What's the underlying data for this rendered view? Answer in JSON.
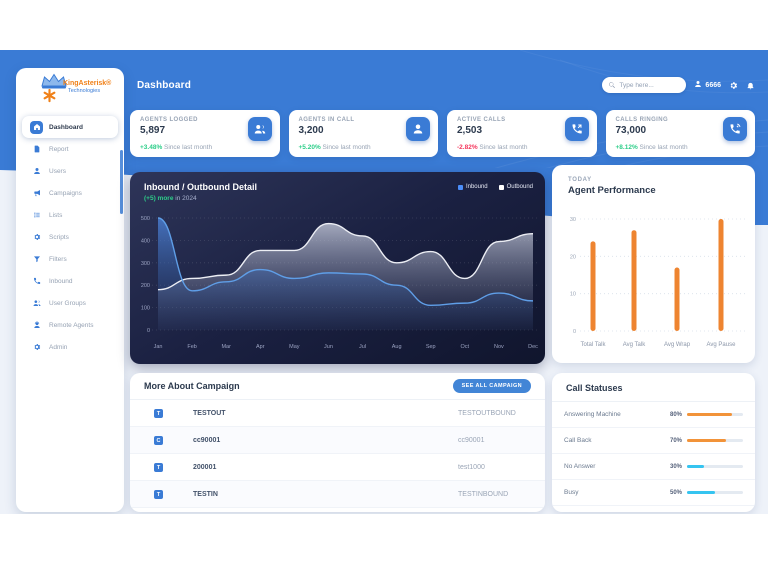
{
  "header": {
    "title": "Dashboard",
    "search_placeholder": "Type here...",
    "user_id": "6666"
  },
  "sidebar": {
    "logo": {
      "name": "KingAsterisk®",
      "tagline": "Technologies"
    },
    "items": [
      {
        "label": "Dashboard",
        "icon": "home-icon",
        "active": true
      },
      {
        "label": "Report",
        "icon": "report-icon",
        "active": false
      },
      {
        "label": "Users",
        "icon": "user-icon",
        "active": false
      },
      {
        "label": "Campaigns",
        "icon": "megaphone-icon",
        "active": false
      },
      {
        "label": "Lists",
        "icon": "list-icon",
        "active": false
      },
      {
        "label": "Scripts",
        "icon": "gear-icon",
        "active": false
      },
      {
        "label": "Filters",
        "icon": "filter-icon",
        "active": false
      },
      {
        "label": "Inbound",
        "icon": "phone-icon",
        "active": false
      },
      {
        "label": "User Groups",
        "icon": "users-icon",
        "active": false
      },
      {
        "label": "Remote Agents",
        "icon": "agent-icon",
        "active": false
      },
      {
        "label": "Admin",
        "icon": "gear-icon",
        "active": false
      }
    ]
  },
  "stats": [
    {
      "label": "AGENTS LOGGED",
      "value": "5,897",
      "delta": "+3.48%",
      "delta_dir": "up",
      "note": "Since last month",
      "icon": "agents-group-icon"
    },
    {
      "label": "AGENTS IN CALL",
      "value": "3,200",
      "delta": "+5.20%",
      "delta_dir": "up",
      "note": "Since last month",
      "icon": "agent-in-call-icon"
    },
    {
      "label": "ACTIVE CALLS",
      "value": "2,503",
      "delta": "-2.82%",
      "delta_dir": "down",
      "note": "Since last month",
      "icon": "phone-outgoing-icon"
    },
    {
      "label": "CALLS RINGING",
      "value": "73,000",
      "delta": "+8.12%",
      "delta_dir": "up",
      "note": "Since last month",
      "icon": "phone-ringing-icon"
    }
  ],
  "chart_data": [
    {
      "id": "inbound-outbound",
      "type": "area",
      "title": "Inbound / Outbound Detail",
      "subtitle_highlight": "(+5) more",
      "subtitle_rest": " in 2024",
      "categories": [
        "Jan",
        "Feb",
        "Mar",
        "Apr",
        "May",
        "Jun",
        "Jul",
        "Aug",
        "Sep",
        "Oct",
        "Nov",
        "Dec"
      ],
      "series": [
        {
          "name": "Inbound",
          "color": "#5f9ee7",
          "values": [
            500,
            175,
            215,
            270,
            230,
            255,
            250,
            200,
            110,
            120,
            165,
            130
          ]
        },
        {
          "name": "Outbound",
          "color": "#eceef4",
          "values": [
            180,
            230,
            245,
            355,
            355,
            475,
            420,
            300,
            350,
            230,
            395,
            430
          ]
        }
      ],
      "ylim": [
        0,
        500
      ],
      "yticks": [
        0,
        100,
        200,
        300,
        400,
        500
      ],
      "grid": true,
      "legend_position": "top-right"
    },
    {
      "id": "agent-performance",
      "type": "bar",
      "kicker": "TODAY",
      "title": "Agent Performance",
      "categories": [
        "Total Talk",
        "Avg Talk",
        "Avg Wrap",
        "Avg Pause"
      ],
      "values": [
        24,
        27,
        17,
        30
      ],
      "bar_color": "#ee8430",
      "ylim": [
        0,
        30
      ],
      "yticks": [
        0,
        10,
        20,
        30
      ],
      "grid": true
    },
    {
      "id": "call-statuses",
      "type": "table",
      "title": "Call Statuses",
      "rows": [
        {
          "label": "Answering Machine",
          "percent": "80%",
          "value": 80,
          "color": "#f29339"
        },
        {
          "label": "Call Back",
          "percent": "70%",
          "value": 70,
          "color": "#f29339"
        },
        {
          "label": "No Answer",
          "percent": "30%",
          "value": 30,
          "color": "#35c4f0"
        },
        {
          "label": "Busy",
          "percent": "50%",
          "value": 50,
          "color": "#35c4f0"
        }
      ]
    }
  ],
  "campaigns": {
    "title": "More About Campaign",
    "button": "SEE ALL CAMPAIGN",
    "rows": [
      {
        "icon_letter": "T",
        "name": "TESTOUT",
        "value": "TESTOUTBOUND"
      },
      {
        "icon_letter": "C",
        "name": "cc90001",
        "value": "cc90001"
      },
      {
        "icon_letter": "T",
        "name": "200001",
        "value": "test1000"
      },
      {
        "icon_letter": "T",
        "name": "TESTIN",
        "value": "TESTINBOUND"
      }
    ]
  },
  "colors": {
    "accent": "#3a7bd5",
    "positive": "#2dce89",
    "negative": "#f5365c",
    "orange": "#ee8430",
    "cyan": "#35c4f0",
    "logo_orange": "#f08018"
  }
}
